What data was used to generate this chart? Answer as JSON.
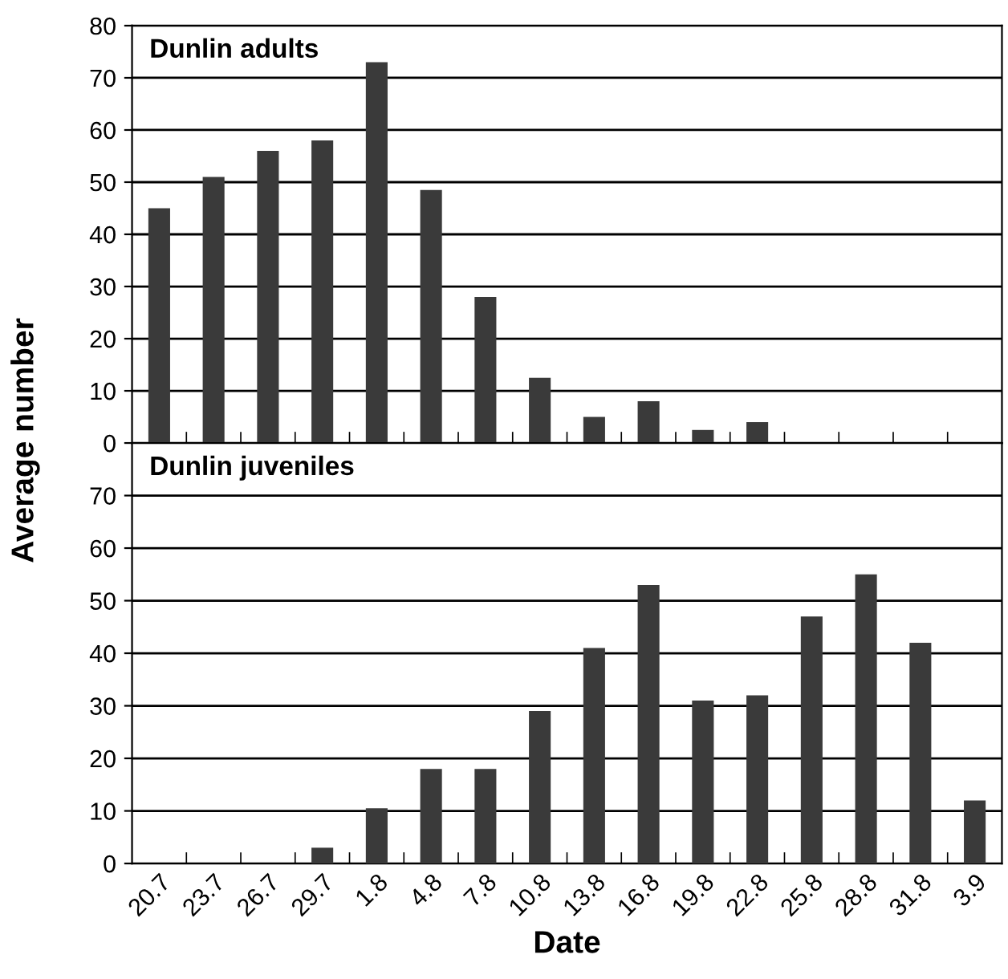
{
  "chart_data": [
    {
      "type": "bar",
      "title": "Dunlin adults",
      "ylabel": "Average number",
      "categories": [
        "20.7",
        "23.7",
        "26.7",
        "29.7",
        "1.8",
        "4.8",
        "7.8",
        "10.8",
        "13.8",
        "16.8",
        "19.8",
        "22.8",
        "25.8",
        "28.8",
        "31.8",
        "3.9"
      ],
      "values": [
        45,
        51,
        56,
        58,
        73,
        48.5,
        28,
        12.5,
        5,
        8,
        2.5,
        4,
        0,
        null,
        0,
        null
      ],
      "color": "#3a3a3a",
      "ylim": [
        0,
        80
      ],
      "yticks": [
        0,
        10,
        20,
        30,
        40,
        50,
        60,
        70,
        80
      ],
      "grid": "y",
      "tick_labels": "y"
    },
    {
      "type": "bar",
      "title": "Dunlin juveniles",
      "xlabel": "Date",
      "categories": [
        "20.7",
        "23.7",
        "26.7",
        "29.7",
        "1.8",
        "4.8",
        "7.8",
        "10.8",
        "13.8",
        "16.8",
        "19.8",
        "22.8",
        "25.8",
        "28.8",
        "31.8",
        "3.9"
      ],
      "values": [
        0,
        0,
        0,
        3,
        10.5,
        18,
        18,
        29,
        41,
        53,
        31,
        32,
        47,
        55,
        42,
        12
      ],
      "color": "#3a3a3a",
      "ylim": [
        0,
        80
      ],
      "yticks": [
        0,
        10,
        20,
        30,
        40,
        50,
        60,
        70
      ],
      "grid": "y"
    }
  ]
}
